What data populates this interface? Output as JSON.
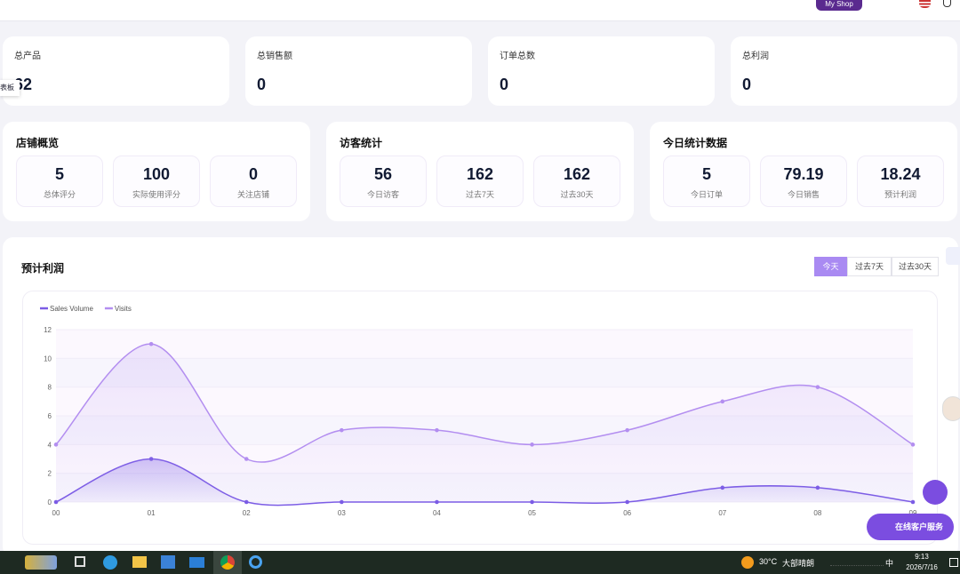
{
  "header": {
    "shop_button": "My Shop"
  },
  "side_tab": "表板",
  "summary_cards": [
    {
      "label": "总产品",
      "value": 62
    },
    {
      "label": "总销售额",
      "value": 0
    },
    {
      "label": "订单总数",
      "value": 0
    },
    {
      "label": "总利润",
      "value": 0
    }
  ],
  "panels": [
    {
      "title": "店铺概览",
      "items": [
        {
          "value": 5,
          "label": "总体评分"
        },
        {
          "value": 100,
          "label": "实际使用评分"
        },
        {
          "value": 0,
          "label": "关注店铺"
        }
      ]
    },
    {
      "title": "访客统计",
      "items": [
        {
          "value": 56,
          "label": "今日访客"
        },
        {
          "value": 162,
          "label": "过去7天"
        },
        {
          "value": 162,
          "label": "过去30天"
        }
      ]
    },
    {
      "title": "今日统计数据",
      "items": [
        {
          "value": 5,
          "label": "今日订单"
        },
        {
          "value": 79.19,
          "label": "今日销售"
        },
        {
          "value": 18.24,
          "label": "预计利润"
        }
      ]
    }
  ],
  "chart_section": {
    "title": "预计利润",
    "tabs": [
      "今天",
      "过去7天",
      "过去30天"
    ]
  },
  "chart_data": {
    "type": "line",
    "categories": [
      "00",
      "01",
      "02",
      "03",
      "04",
      "05",
      "06",
      "07",
      "08",
      "09"
    ],
    "series": [
      {
        "name": "Sales Volume",
        "color": "#7b5ce5",
        "values": [
          0,
          3,
          0,
          0,
          0,
          0,
          0,
          1,
          1,
          0
        ]
      },
      {
        "name": "Visits",
        "color": "#b38ef0",
        "values": [
          4,
          11,
          3,
          5,
          5,
          4,
          5,
          7,
          8,
          4
        ]
      }
    ],
    "ylim": [
      0,
      12
    ],
    "yticks": [
      0,
      2,
      4,
      6,
      8,
      10,
      12
    ],
    "smooth": true,
    "area": true,
    "grid": true,
    "legend": "top-left"
  },
  "support_button": "在线客户服务",
  "taskbar": {
    "temperature": "30°C",
    "weather": "大部晴朗",
    "ime": "中",
    "time": "9:13",
    "date": "2026/7/16"
  }
}
